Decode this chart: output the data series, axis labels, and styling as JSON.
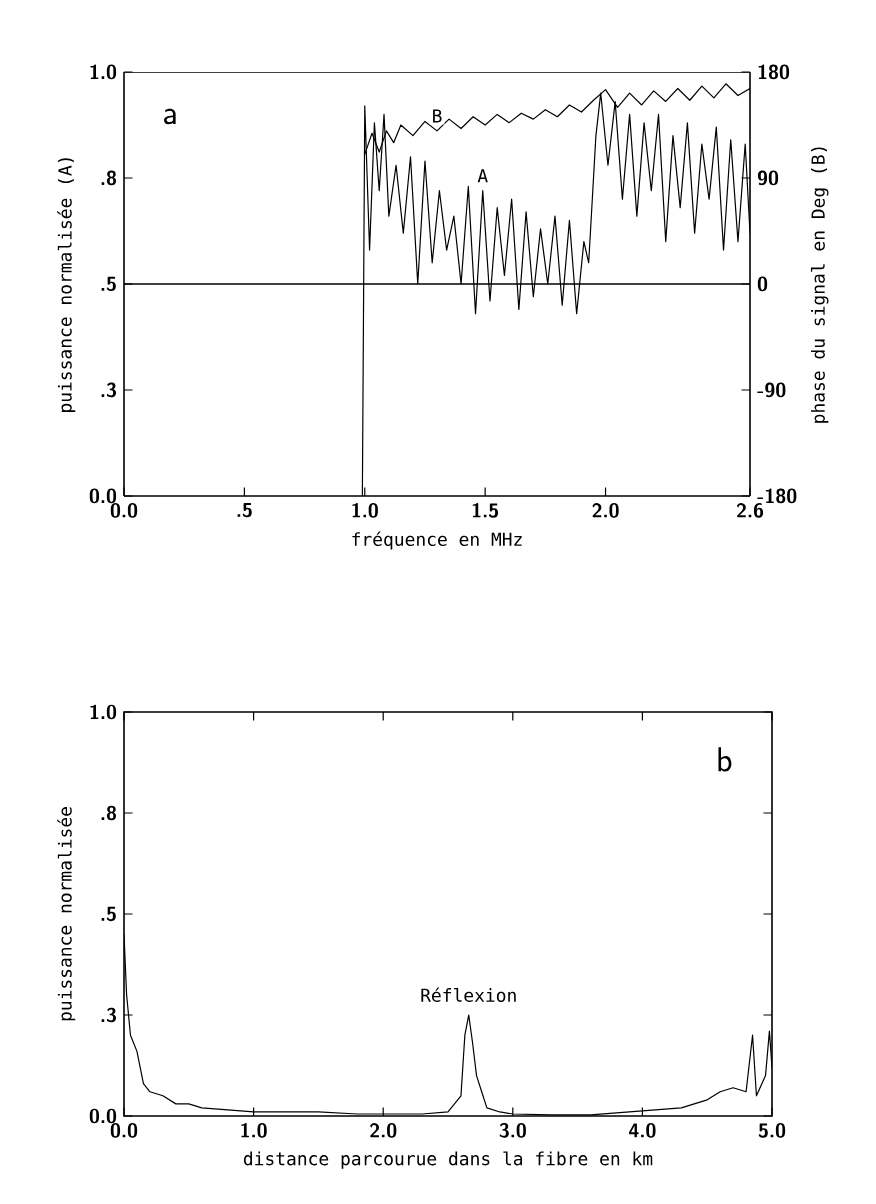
{
  "chart_data": [
    {
      "type": "line",
      "annotations": [
        "a"
      ],
      "xlabel": "fréquence en MHz",
      "ylabel": "puissance normalisée (A)",
      "y2label": "phase du signal en Deg (B)",
      "xlim": [
        0,
        2.6
      ],
      "xticks": [
        {
          "value": 0,
          "label": "0.0"
        },
        {
          "value": 0.5,
          "label": ".5"
        },
        {
          "value": 1,
          "label": "1.0"
        },
        1.5,
        {
          "value": 2,
          "label": "2.0"
        },
        2.6
      ],
      "ylim": [
        0,
        1
      ],
      "yticks": [
        {
          "value": 0,
          "label": "0.0"
        },
        {
          "value": 0.25,
          "label": ".3"
        },
        {
          "value": 0.5,
          "label": ".5"
        },
        {
          "value": 0.75,
          "label": ".8"
        },
        {
          "value": 1,
          "label": "1.0"
        }
      ],
      "y2lim": [
        -180,
        180
      ],
      "y2ticks": [
        -180,
        -90,
        0,
        90,
        180
      ],
      "ref_lines": [
        {
          "axis": "y2",
          "value": 0
        }
      ],
      "series": [
        {
          "name": "A",
          "color": "#000000",
          "x": [
            0.99,
            1.0,
            1.02,
            1.04,
            1.06,
            1.08,
            1.1,
            1.13,
            1.16,
            1.19,
            1.22,
            1.25,
            1.28,
            1.31,
            1.34,
            1.37,
            1.4,
            1.43,
            1.46,
            1.49,
            1.52,
            1.55,
            1.58,
            1.61,
            1.64,
            1.67,
            1.7,
            1.73,
            1.76,
            1.79,
            1.82,
            1.85,
            1.88,
            1.91,
            1.93,
            1.96,
            1.98,
            2.01,
            2.04,
            2.07,
            2.1,
            2.13,
            2.16,
            2.19,
            2.22,
            2.25,
            2.28,
            2.31,
            2.34,
            2.37,
            2.4,
            2.43,
            2.46,
            2.49,
            2.52,
            2.55,
            2.58,
            2.6
          ],
          "values": [
            0.0,
            0.92,
            0.58,
            0.88,
            0.72,
            0.9,
            0.66,
            0.78,
            0.62,
            0.8,
            0.5,
            0.79,
            0.55,
            0.72,
            0.58,
            0.66,
            0.5,
            0.73,
            0.43,
            0.72,
            0.46,
            0.68,
            0.52,
            0.7,
            0.44,
            0.67,
            0.47,
            0.63,
            0.5,
            0.66,
            0.45,
            0.65,
            0.43,
            0.6,
            0.55,
            0.85,
            0.95,
            0.78,
            0.93,
            0.7,
            0.9,
            0.66,
            0.88,
            0.72,
            0.9,
            0.6,
            0.85,
            0.68,
            0.88,
            0.62,
            0.83,
            0.7,
            0.87,
            0.58,
            0.84,
            0.6,
            0.83,
            0.62
          ]
        },
        {
          "name": "B",
          "color": "#000000",
          "axis": "y2",
          "x": [
            1.0,
            1.03,
            1.06,
            1.09,
            1.12,
            1.15,
            1.2,
            1.25,
            1.3,
            1.35,
            1.4,
            1.45,
            1.5,
            1.55,
            1.6,
            1.65,
            1.7,
            1.75,
            1.8,
            1.85,
            1.9,
            1.95,
            2.0,
            2.05,
            2.1,
            2.15,
            2.2,
            2.25,
            2.3,
            2.35,
            2.4,
            2.45,
            2.5,
            2.55,
            2.6
          ],
          "values": [
            110,
            128,
            112,
            130,
            120,
            135,
            126,
            138,
            130,
            140,
            132,
            142,
            135,
            144,
            137,
            145,
            140,
            148,
            142,
            152,
            146,
            156,
            165,
            150,
            162,
            152,
            164,
            155,
            166,
            156,
            168,
            158,
            170,
            160,
            166
          ]
        }
      ]
    },
    {
      "type": "line",
      "annotations": [
        "b",
        {
          "text": "Réflexion",
          "x": 2.66,
          "y": 0.25
        }
      ],
      "xlabel": "distance parcourue dans la fibre en km",
      "ylabel": "puissance normalisée",
      "xlim": [
        0,
        5
      ],
      "xticks": [
        {
          "value": 0,
          "label": "0.0"
        },
        {
          "value": 1,
          "label": "1.0"
        },
        {
          "value": 2,
          "label": "2.0"
        },
        {
          "value": 3,
          "label": "3.0"
        },
        {
          "value": 4,
          "label": "4.0"
        },
        {
          "value": 5,
          "label": "5.0"
        }
      ],
      "ylim": [
        0,
        1
      ],
      "yticks": [
        {
          "value": 0,
          "label": "0.0"
        },
        {
          "value": 0.25,
          "label": ".3"
        },
        {
          "value": 0.5,
          "label": ".5"
        },
        {
          "value": 0.75,
          "label": ".8"
        },
        {
          "value": 1,
          "label": "1.0"
        }
      ],
      "series": [
        {
          "color": "#000000",
          "x": [
            0.0,
            0.02,
            0.05,
            0.1,
            0.15,
            0.2,
            0.3,
            0.4,
            0.5,
            0.6,
            0.8,
            1.0,
            1.2,
            1.5,
            1.8,
            2.0,
            2.3,
            2.5,
            2.55,
            2.6,
            2.63,
            2.66,
            2.69,
            2.72,
            2.76,
            2.8,
            2.9,
            3.0,
            3.3,
            3.6,
            3.9,
            4.1,
            4.3,
            4.4,
            4.5,
            4.6,
            4.7,
            4.8,
            4.85,
            4.88,
            4.95,
            4.98,
            5.0
          ],
          "values": [
            0.45,
            0.3,
            0.2,
            0.16,
            0.08,
            0.06,
            0.05,
            0.03,
            0.03,
            0.02,
            0.015,
            0.01,
            0.01,
            0.01,
            0.005,
            0.005,
            0.005,
            0.01,
            0.03,
            0.05,
            0.2,
            0.25,
            0.18,
            0.1,
            0.06,
            0.02,
            0.01,
            0.005,
            0.003,
            0.003,
            0.01,
            0.015,
            0.02,
            0.03,
            0.04,
            0.06,
            0.07,
            0.06,
            0.2,
            0.05,
            0.1,
            0.21,
            0.12
          ]
        }
      ]
    }
  ]
}
